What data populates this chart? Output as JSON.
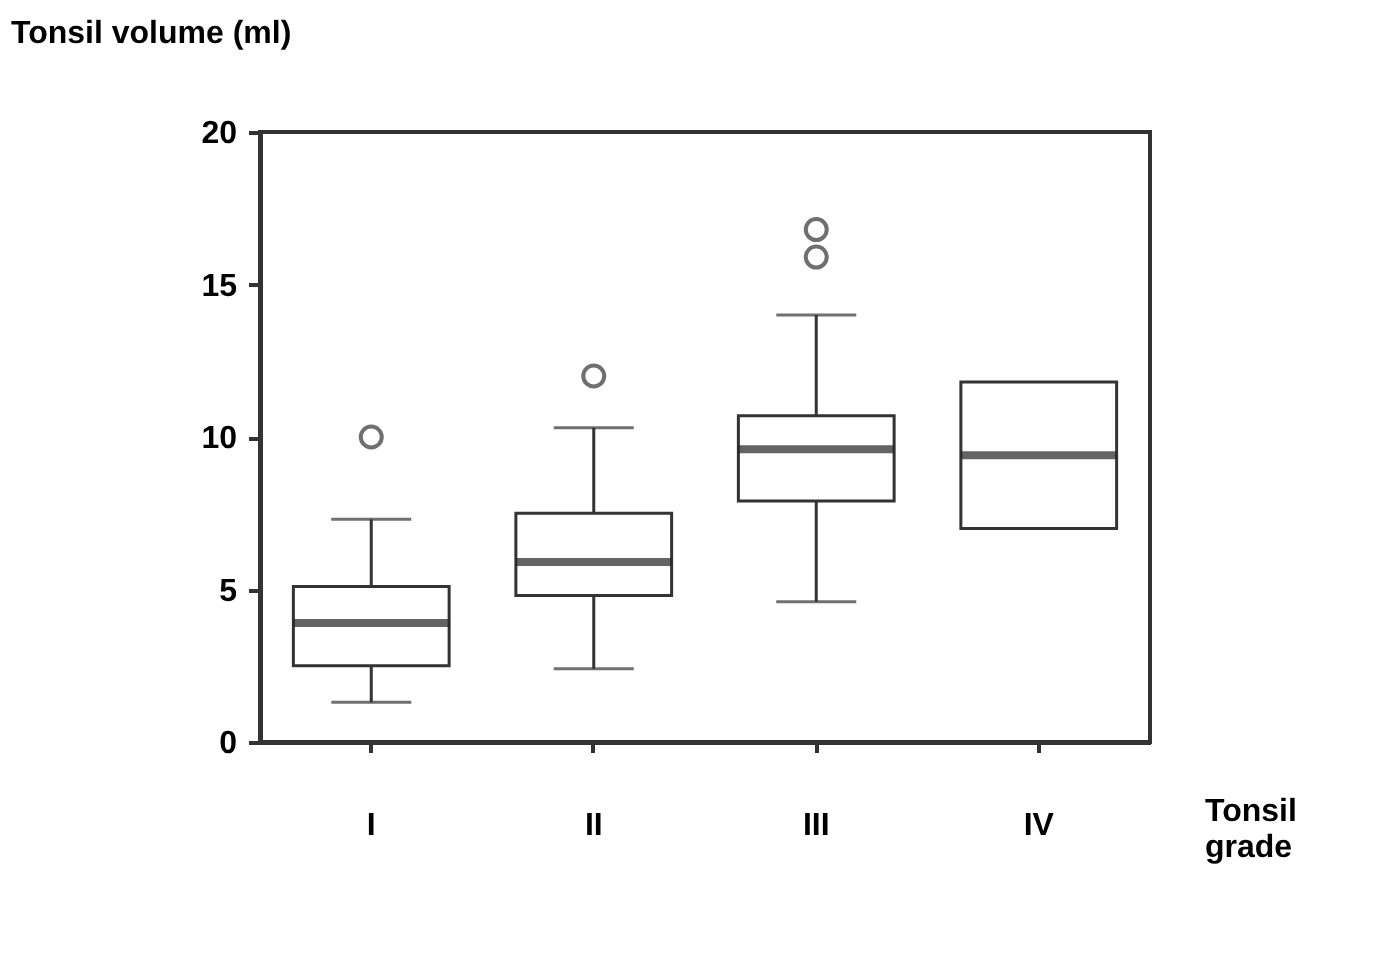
{
  "chart_data": {
    "type": "box",
    "xlabel": "Tonsil grade",
    "ylabel": "Tonsil volume (ml)",
    "categories": [
      "I",
      "II",
      "III",
      "IV"
    ],
    "boxes": [
      {
        "low": 1.3,
        "q1": 2.5,
        "median": 3.9,
        "q3": 5.1,
        "high": 7.3,
        "outliers": [
          10
        ]
      },
      {
        "low": 2.4,
        "q1": 4.8,
        "median": 5.9,
        "q3": 7.5,
        "high": 10.3,
        "outliers": [
          12
        ]
      },
      {
        "low": 4.6,
        "q1": 7.9,
        "median": 9.6,
        "q3": 10.7,
        "high": 14,
        "outliers": [
          15.9,
          16.8
        ]
      },
      {
        "low": 7,
        "q1": 7,
        "median": 9.4,
        "q3": 11.8,
        "high": 11.8
      }
    ],
    "ylim": [
      0,
      20
    ],
    "yticks": [
      0,
      5,
      10,
      15,
      20
    ],
    "grid": false
  }
}
